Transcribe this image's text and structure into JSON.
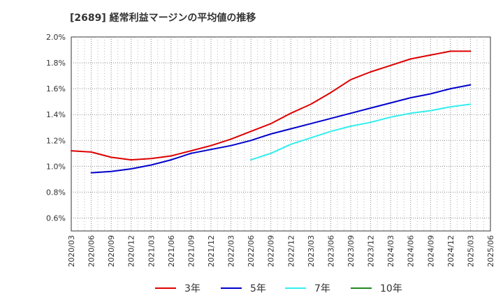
{
  "chart_data": {
    "type": "line",
    "title": "[2689]  経常利益マージンの平均値の推移",
    "xlabel": "",
    "ylabel": "",
    "ylim": [
      0.5,
      2.0
    ],
    "y_ticks": [
      "0.6%",
      "0.8%",
      "1.0%",
      "1.2%",
      "1.4%",
      "1.6%",
      "1.8%",
      "2.0%"
    ],
    "y_tick_values": [
      0.6,
      0.8,
      1.0,
      1.2,
      1.4,
      1.6,
      1.8,
      2.0
    ],
    "x_ticks": [
      "2020/03",
      "2020/06",
      "2020/09",
      "2020/12",
      "2021/03",
      "2021/06",
      "2021/09",
      "2021/12",
      "2022/03",
      "2022/06",
      "2022/09",
      "2022/12",
      "2023/03",
      "2023/06",
      "2023/09",
      "2023/12",
      "2024/03",
      "2024/06",
      "2024/09",
      "2024/12",
      "2025/03",
      "2025/06"
    ],
    "grid": true,
    "legend_position": "bottom",
    "series": [
      {
        "name": "3年",
        "color": "#dd0000",
        "x": [
          "2020/03",
          "2020/06",
          "2020/09",
          "2020/12",
          "2021/03",
          "2021/06",
          "2021/09",
          "2021/12",
          "2022/03",
          "2022/06",
          "2022/09",
          "2022/12",
          "2023/03",
          "2023/06",
          "2023/09",
          "2023/12",
          "2024/03",
          "2024/06",
          "2024/09",
          "2024/12",
          "2025/03"
        ],
        "values": [
          1.12,
          1.11,
          1.07,
          1.05,
          1.06,
          1.08,
          1.12,
          1.16,
          1.21,
          1.27,
          1.33,
          1.41,
          1.48,
          1.57,
          1.67,
          1.73,
          1.78,
          1.83,
          1.86,
          1.89,
          1.89
        ]
      },
      {
        "name": "5年",
        "color": "#0000cc",
        "x": [
          "2020/06",
          "2020/09",
          "2020/12",
          "2021/03",
          "2021/06",
          "2021/09",
          "2021/12",
          "2022/03",
          "2022/06",
          "2022/09",
          "2022/12",
          "2023/03",
          "2023/06",
          "2023/09",
          "2023/12",
          "2024/03",
          "2024/06",
          "2024/09",
          "2024/12",
          "2025/03"
        ],
        "values": [
          0.95,
          0.96,
          0.98,
          1.01,
          1.05,
          1.1,
          1.13,
          1.16,
          1.2,
          1.25,
          1.29,
          1.33,
          1.37,
          1.41,
          1.45,
          1.49,
          1.53,
          1.56,
          1.6,
          1.63
        ]
      },
      {
        "name": "7年",
        "color": "#33eeee",
        "x": [
          "2022/06",
          "2022/09",
          "2022/12",
          "2023/03",
          "2023/06",
          "2023/09",
          "2023/12",
          "2024/03",
          "2024/06",
          "2024/09",
          "2024/12",
          "2025/03"
        ],
        "values": [
          1.05,
          1.1,
          1.17,
          1.22,
          1.27,
          1.31,
          1.34,
          1.38,
          1.41,
          1.43,
          1.46,
          1.48
        ]
      },
      {
        "name": "10年",
        "color": "#228822",
        "x": [],
        "values": []
      }
    ]
  }
}
